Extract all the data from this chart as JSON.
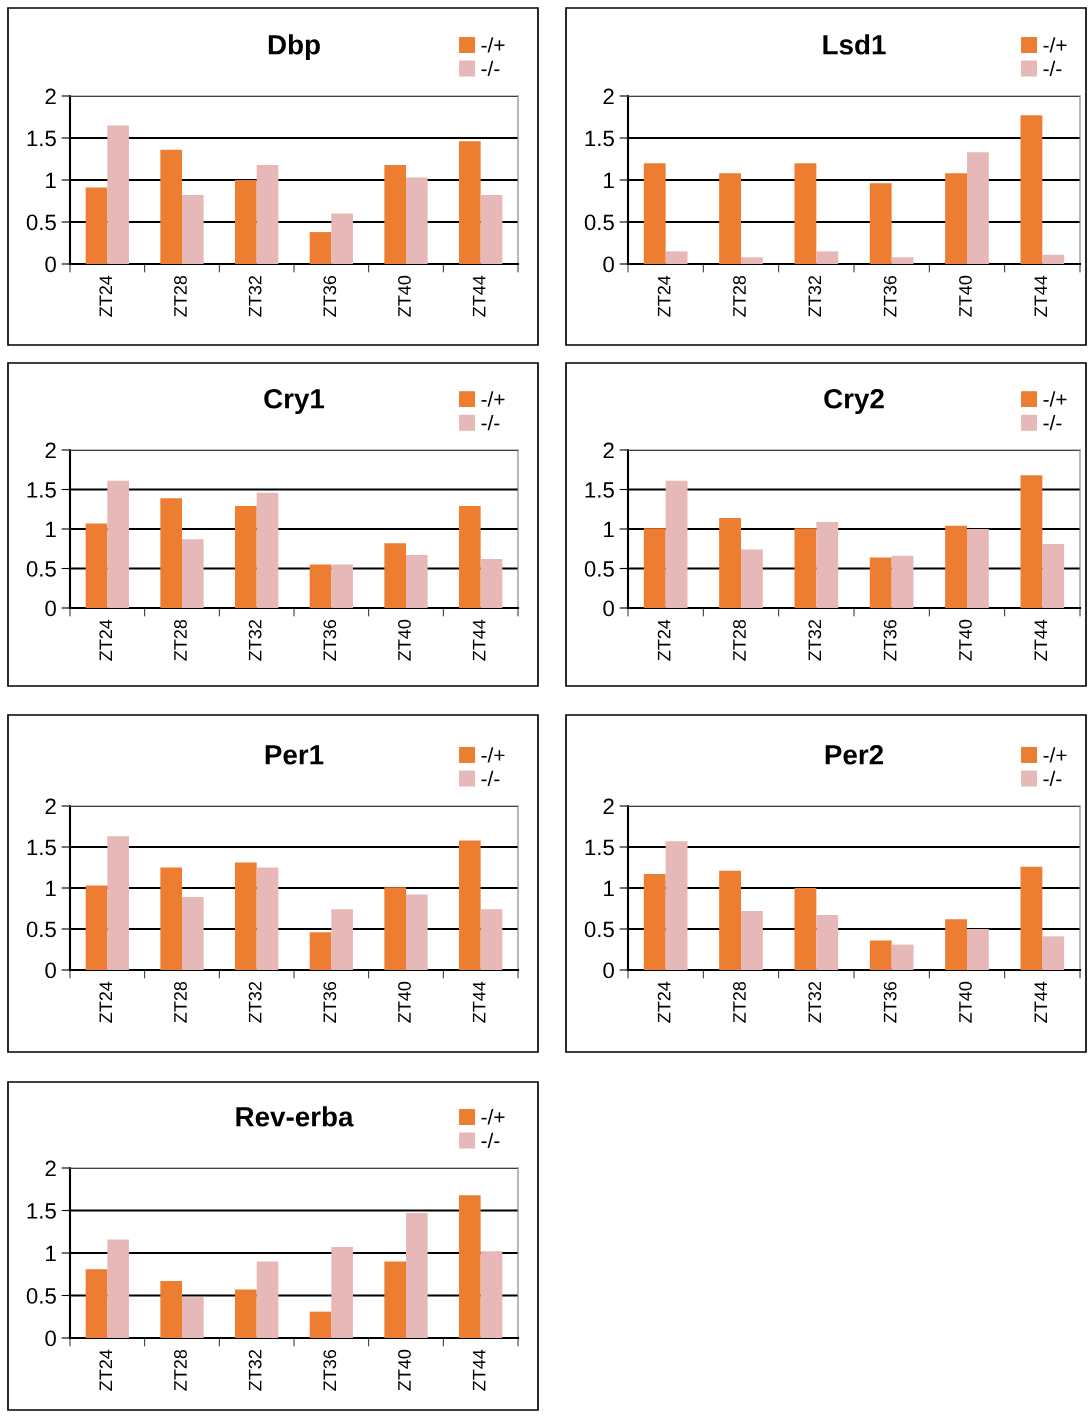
{
  "chart_data": [
    {
      "type": "bar",
      "title": "Dbp",
      "categories": [
        "ZT24",
        "ZT28",
        "ZT32",
        "ZT36",
        "ZT40",
        "ZT44"
      ],
      "ylim": [
        0,
        2
      ],
      "yticks": [
        0,
        0.5,
        1,
        1.5,
        2
      ],
      "grid": "y",
      "legend": "top right",
      "series": [
        {
          "name": "-/+",
          "color": "#ed7d31",
          "values": [
            0.91,
            1.36,
            1.0,
            0.38,
            1.18,
            1.46
          ]
        },
        {
          "name": "-/-",
          "color": "#e6b8b7",
          "values": [
            1.65,
            0.82,
            1.18,
            0.6,
            1.03,
            0.82
          ]
        }
      ]
    },
    {
      "type": "bar",
      "title": "Lsd1",
      "categories": [
        "ZT24",
        "ZT28",
        "ZT32",
        "ZT36",
        "ZT40",
        "ZT44"
      ],
      "ylim": [
        0,
        2
      ],
      "yticks": [
        0,
        0.5,
        1,
        1.5,
        2
      ],
      "grid": "y",
      "legend": "top right",
      "series": [
        {
          "name": "-/+",
          "color": "#ed7d31",
          "values": [
            1.2,
            1.08,
            1.2,
            0.96,
            1.08,
            1.77
          ]
        },
        {
          "name": "-/-",
          "color": "#e6b8b7",
          "values": [
            0.15,
            0.08,
            0.15,
            0.08,
            1.33,
            0.11
          ]
        }
      ]
    },
    {
      "type": "bar",
      "title": "Cry1",
      "categories": [
        "ZT24",
        "ZT28",
        "ZT32",
        "ZT36",
        "ZT40",
        "ZT44"
      ],
      "ylim": [
        0,
        2
      ],
      "yticks": [
        0,
        0.5,
        1,
        1.5,
        2
      ],
      "grid": "y",
      "legend": "top right",
      "series": [
        {
          "name": "-/+",
          "color": "#ed7d31",
          "values": [
            1.07,
            1.39,
            1.29,
            0.55,
            0.82,
            1.29
          ]
        },
        {
          "name": "-/-",
          "color": "#e6b8b7",
          "values": [
            1.61,
            0.87,
            1.46,
            0.55,
            0.67,
            0.62
          ]
        }
      ]
    },
    {
      "type": "bar",
      "title": "Cry2",
      "categories": [
        "ZT24",
        "ZT28",
        "ZT32",
        "ZT36",
        "ZT40",
        "ZT44"
      ],
      "ylim": [
        0,
        2
      ],
      "yticks": [
        0,
        0.5,
        1,
        1.5,
        2
      ],
      "grid": "y",
      "legend": "top right",
      "series": [
        {
          "name": "-/+",
          "color": "#ed7d31",
          "values": [
            1.01,
            1.14,
            1.01,
            0.64,
            1.04,
            1.68
          ]
        },
        {
          "name": "-/-",
          "color": "#e6b8b7",
          "values": [
            1.61,
            0.74,
            1.09,
            0.66,
            1.0,
            0.81
          ]
        }
      ]
    },
    {
      "type": "bar",
      "title": "Per1",
      "categories": [
        "ZT24",
        "ZT28",
        "ZT32",
        "ZT36",
        "ZT40",
        "ZT44"
      ],
      "ylim": [
        0,
        2
      ],
      "yticks": [
        0,
        0.5,
        1,
        1.5,
        2
      ],
      "grid": "y",
      "legend": "top right",
      "series": [
        {
          "name": "-/+",
          "color": "#ed7d31",
          "values": [
            1.03,
            1.25,
            1.31,
            0.46,
            1.01,
            1.58
          ]
        },
        {
          "name": "-/-",
          "color": "#e6b8b7",
          "values": [
            1.63,
            0.89,
            1.25,
            0.74,
            0.92,
            0.74
          ]
        }
      ]
    },
    {
      "type": "bar",
      "title": "Per2",
      "categories": [
        "ZT24",
        "ZT28",
        "ZT32",
        "ZT36",
        "ZT40",
        "ZT44"
      ],
      "ylim": [
        0,
        2
      ],
      "yticks": [
        0,
        0.5,
        1,
        1.5,
        2
      ],
      "grid": "y",
      "legend": "top right",
      "series": [
        {
          "name": "-/+",
          "color": "#ed7d31",
          "values": [
            1.17,
            1.21,
            1.0,
            0.36,
            0.62,
            1.26
          ]
        },
        {
          "name": "-/-",
          "color": "#e6b8b7",
          "values": [
            1.57,
            0.72,
            0.67,
            0.31,
            0.5,
            0.41
          ]
        }
      ]
    },
    {
      "type": "bar",
      "title": "Rev-erba",
      "categories": [
        "ZT24",
        "ZT28",
        "ZT32",
        "ZT36",
        "ZT40",
        "ZT44"
      ],
      "ylim": [
        0,
        2
      ],
      "yticks": [
        0,
        0.5,
        1,
        1.5,
        2
      ],
      "grid": "y",
      "legend": "top right",
      "series": [
        {
          "name": "-/+",
          "color": "#ed7d31",
          "values": [
            0.81,
            0.67,
            0.57,
            0.31,
            0.9,
            1.68
          ]
        },
        {
          "name": "-/-",
          "color": "#e6b8b7",
          "values": [
            1.16,
            0.48,
            0.9,
            1.07,
            1.47,
            1.02
          ]
        }
      ]
    }
  ]
}
